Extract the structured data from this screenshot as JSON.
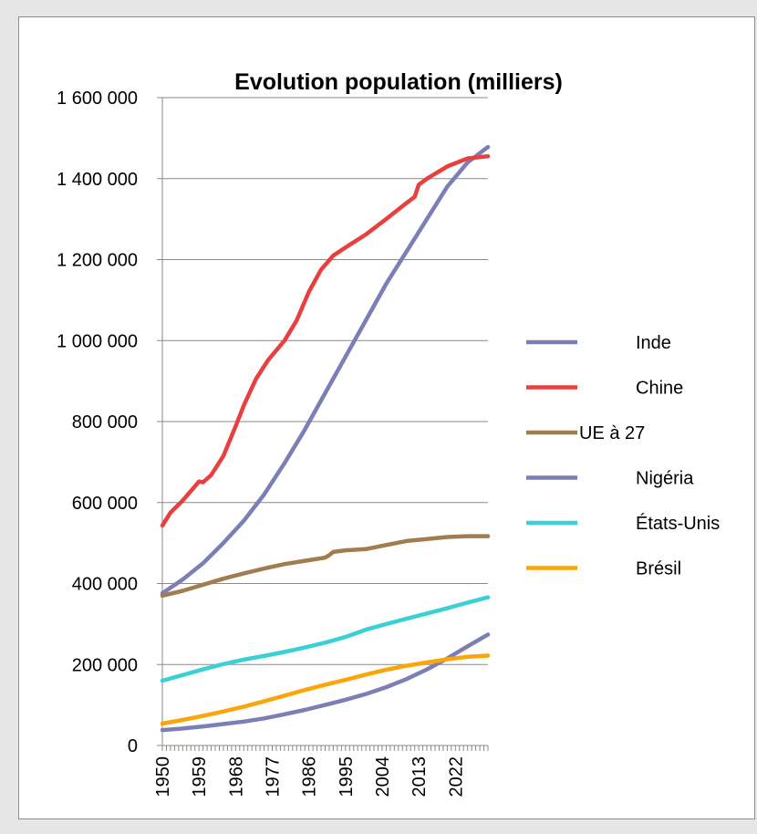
{
  "chart_data": {
    "type": "line",
    "title": "Evolution population (milliers)",
    "xlabel": "",
    "ylabel": "",
    "ylim": [
      0,
      1600000
    ],
    "xlim": [
      1950,
      2030
    ],
    "yticks": [
      0,
      200000,
      400000,
      600000,
      800000,
      1000000,
      1200000,
      1400000,
      1600000
    ],
    "ytick_labels": [
      "0",
      "200 000",
      "400 000",
      "600 000",
      "800 000",
      "1 000 000",
      "1 200 000",
      "1 400 000",
      "1 600 000"
    ],
    "xtick_labels": [
      "1950",
      "1959",
      "1968",
      "1977",
      "1986",
      "1995",
      "2004",
      "2013",
      "2022"
    ],
    "grid": "horizontal",
    "legend_position": "right",
    "series": [
      {
        "name": "Inde",
        "color": "#7b7fb5",
        "points": [
          [
            1950,
            376000
          ],
          [
            1955,
            410000
          ],
          [
            1960,
            450000
          ],
          [
            1965,
            500000
          ],
          [
            1970,
            555000
          ],
          [
            1975,
            620000
          ],
          [
            1980,
            697000
          ],
          [
            1985,
            780000
          ],
          [
            1990,
            870000
          ],
          [
            1995,
            960000
          ],
          [
            2000,
            1050000
          ],
          [
            2005,
            1140000
          ],
          [
            2010,
            1220000
          ],
          [
            2015,
            1300000
          ],
          [
            2020,
            1380000
          ],
          [
            2025,
            1440000
          ],
          [
            2030,
            1478000
          ]
        ]
      },
      {
        "name": "Chine",
        "color": "#e8403f",
        "points": [
          [
            1950,
            543000
          ],
          [
            1952,
            575000
          ],
          [
            1955,
            605000
          ],
          [
            1958,
            640000
          ],
          [
            1959,
            652000
          ],
          [
            1960,
            650000
          ],
          [
            1962,
            668000
          ],
          [
            1965,
            715000
          ],
          [
            1968,
            788000
          ],
          [
            1970,
            840000
          ],
          [
            1973,
            905000
          ],
          [
            1976,
            952000
          ],
          [
            1980,
            1000000
          ],
          [
            1983,
            1050000
          ],
          [
            1986,
            1120000
          ],
          [
            1989,
            1175000
          ],
          [
            1992,
            1210000
          ],
          [
            1995,
            1230000
          ],
          [
            2000,
            1262000
          ],
          [
            2005,
            1300000
          ],
          [
            2010,
            1340000
          ],
          [
            2012,
            1355000
          ],
          [
            2013,
            1385000
          ],
          [
            2015,
            1400000
          ],
          [
            2020,
            1430000
          ],
          [
            2025,
            1450000
          ],
          [
            2030,
            1455000
          ]
        ]
      },
      {
        "name": "UE à 27",
        "color": "#a07d4f",
        "points": [
          [
            1950,
            370000
          ],
          [
            1955,
            382000
          ],
          [
            1960,
            397000
          ],
          [
            1965,
            412000
          ],
          [
            1970,
            425000
          ],
          [
            1975,
            437000
          ],
          [
            1980,
            448000
          ],
          [
            1985,
            456000
          ],
          [
            1990,
            464000
          ],
          [
            1991,
            470000
          ],
          [
            1992,
            478000
          ],
          [
            1995,
            482000
          ],
          [
            2000,
            485000
          ],
          [
            2005,
            495000
          ],
          [
            2010,
            505000
          ],
          [
            2015,
            510000
          ],
          [
            2020,
            515000
          ],
          [
            2025,
            517000
          ],
          [
            2030,
            517000
          ]
        ]
      },
      {
        "name": "Nigéria",
        "color": "#7b7fb5",
        "points": [
          [
            1950,
            38000
          ],
          [
            1955,
            42000
          ],
          [
            1960,
            47000
          ],
          [
            1965,
            53000
          ],
          [
            1970,
            59000
          ],
          [
            1975,
            67000
          ],
          [
            1980,
            77000
          ],
          [
            1985,
            88000
          ],
          [
            1990,
            100000
          ],
          [
            1995,
            113000
          ],
          [
            2000,
            127000
          ],
          [
            2005,
            144000
          ],
          [
            2010,
            164000
          ],
          [
            2015,
            188000
          ],
          [
            2020,
            215000
          ],
          [
            2025,
            245000
          ],
          [
            2030,
            274000
          ]
        ]
      },
      {
        "name": "États-Unis",
        "color": "#3bd1d4",
        "points": [
          [
            1950,
            160000
          ],
          [
            1955,
            174000
          ],
          [
            1960,
            188000
          ],
          [
            1965,
            201000
          ],
          [
            1970,
            212000
          ],
          [
            1975,
            221000
          ],
          [
            1980,
            231000
          ],
          [
            1985,
            242000
          ],
          [
            1990,
            254000
          ],
          [
            1995,
            268000
          ],
          [
            2000,
            286000
          ],
          [
            2005,
            300000
          ],
          [
            2010,
            313000
          ],
          [
            2015,
            326000
          ],
          [
            2020,
            339000
          ],
          [
            2025,
            353000
          ],
          [
            2030,
            366000
          ]
        ]
      },
      {
        "name": "Brésil",
        "color": "#f8a60a",
        "points": [
          [
            1950,
            54000
          ],
          [
            1955,
            63000
          ],
          [
            1960,
            73000
          ],
          [
            1965,
            84000
          ],
          [
            1970,
            96000
          ],
          [
            1975,
            109000
          ],
          [
            1980,
            123000
          ],
          [
            1985,
            137000
          ],
          [
            1990,
            150000
          ],
          [
            1995,
            162000
          ],
          [
            2000,
            175000
          ],
          [
            2005,
            187000
          ],
          [
            2010,
            197000
          ],
          [
            2015,
            205000
          ],
          [
            2020,
            213000
          ],
          [
            2025,
            219000
          ],
          [
            2030,
            222000
          ]
        ]
      }
    ]
  }
}
